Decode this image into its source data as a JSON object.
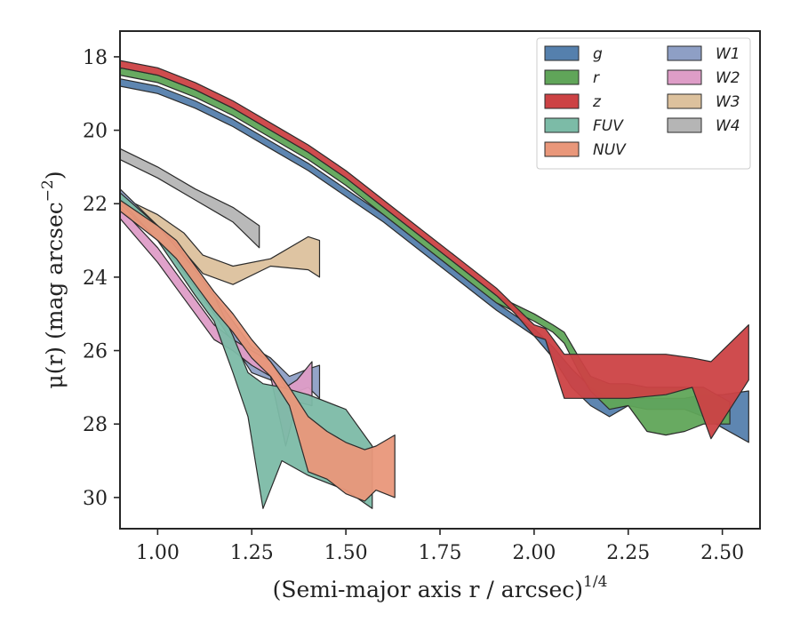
{
  "chart_data": {
    "type": "area",
    "xlabel": "(Semi-major axis r / arcsec)",
    "xlabel_power": "1/4",
    "ylabel": "μ(r) (mag arcsec",
    "ylabel_power": "−2",
    "ylabel_close": ")",
    "xlim": [
      0.9,
      2.6
    ],
    "ylim": [
      30.85,
      17.3
    ],
    "y_inverted": true,
    "xticks": [
      1.0,
      1.25,
      1.5,
      1.75,
      2.0,
      2.25,
      2.5
    ],
    "xtick_labels": [
      "1.00",
      "1.25",
      "1.50",
      "1.75",
      "2.00",
      "2.25",
      "2.50"
    ],
    "yticks": [
      18,
      20,
      22,
      24,
      26,
      28,
      30
    ],
    "ytick_labels": [
      "18",
      "20",
      "22",
      "24",
      "26",
      "28",
      "30"
    ],
    "grid": false,
    "legend_placement": "top-right",
    "legend_columns": 2,
    "series": [
      {
        "name": "W4",
        "color": "#b5b5b5",
        "x": [
          0.9,
          1.0,
          1.1,
          1.2,
          1.27
        ],
        "y_upper": [
          20.5,
          21.0,
          21.6,
          22.1,
          22.6
        ],
        "y_lower": [
          20.8,
          21.3,
          21.9,
          22.5,
          23.2
        ]
      },
      {
        "name": "W3",
        "color": "#dcc19d",
        "x": [
          0.9,
          1.0,
          1.07,
          1.12,
          1.2,
          1.3,
          1.4,
          1.43
        ],
        "y_upper": [
          21.8,
          22.3,
          22.8,
          23.4,
          23.7,
          23.5,
          22.9,
          23.0
        ],
        "y_lower": [
          22.2,
          22.8,
          23.3,
          23.9,
          24.2,
          23.7,
          23.8,
          24.0
        ]
      },
      {
        "name": "W1",
        "color": "#8e9fc5",
        "x": [
          0.9,
          1.0,
          1.05,
          1.1,
          1.15,
          1.2,
          1.25,
          1.3,
          1.35,
          1.4,
          1.43
        ],
        "y_upper": [
          21.6,
          22.6,
          23.1,
          23.8,
          24.5,
          25.2,
          25.9,
          26.2,
          26.7,
          26.5,
          26.4
        ],
        "y_lower": [
          22.0,
          23.0,
          23.6,
          24.3,
          25.0,
          25.8,
          26.6,
          26.8,
          27.2,
          27.0,
          27.3
        ]
      },
      {
        "name": "W2",
        "color": "#de9dc7",
        "x": [
          0.9,
          1.0,
          1.05,
          1.1,
          1.15,
          1.2,
          1.25,
          1.3,
          1.34,
          1.37,
          1.41
        ],
        "y_upper": [
          22.1,
          23.2,
          23.9,
          24.6,
          25.3,
          25.7,
          26.0,
          26.3,
          27.0,
          26.8,
          26.3
        ],
        "y_lower": [
          22.4,
          23.6,
          24.3,
          25.0,
          25.7,
          26.0,
          26.4,
          26.7,
          28.6,
          27.4,
          27.5
        ]
      },
      {
        "name": "FUV",
        "color": "#7cbba7",
        "x": [
          0.9,
          1.0,
          1.1,
          1.15,
          1.2,
          1.24,
          1.28,
          1.33,
          1.4,
          1.5,
          1.57
        ],
        "y_upper": [
          21.7,
          22.6,
          23.8,
          24.5,
          25.6,
          26.6,
          26.9,
          27.0,
          27.2,
          27.6,
          28.6
        ],
        "y_lower": [
          21.9,
          23.0,
          24.5,
          25.2,
          26.6,
          27.8,
          30.3,
          29.0,
          29.4,
          29.8,
          30.3
        ]
      },
      {
        "name": "NUV",
        "color": "#e9977a",
        "x": [
          0.9,
          1.0,
          1.05,
          1.1,
          1.15,
          1.2,
          1.25,
          1.3,
          1.35,
          1.4,
          1.45,
          1.5,
          1.55,
          1.58,
          1.63
        ],
        "y_upper": [
          21.9,
          22.6,
          23.0,
          23.7,
          24.4,
          25.0,
          25.7,
          26.3,
          27.0,
          27.8,
          28.2,
          28.5,
          28.7,
          28.6,
          28.3
        ],
        "y_lower": [
          22.2,
          23.0,
          23.5,
          24.2,
          24.9,
          25.5,
          26.2,
          26.7,
          27.5,
          29.3,
          29.5,
          29.9,
          30.1,
          29.8,
          30.0
        ]
      },
      {
        "name": "g",
        "color": "#5580ad",
        "x": [
          0.9,
          1.0,
          1.1,
          1.2,
          1.3,
          1.4,
          1.5,
          1.6,
          1.7,
          1.8,
          1.9,
          2.0,
          2.05,
          2.1,
          2.15,
          2.2,
          2.25,
          2.3,
          2.35,
          2.4,
          2.45,
          2.5,
          2.57
        ],
        "y_upper": [
          18.6,
          18.8,
          19.2,
          19.7,
          20.3,
          20.9,
          21.6,
          22.3,
          23.1,
          23.9,
          24.7,
          25.4,
          25.9,
          26.5,
          27.0,
          27.3,
          27.3,
          27.3,
          27.3,
          27.3,
          27.2,
          27.2,
          27.1
        ],
        "y_lower": [
          18.8,
          19.0,
          19.4,
          19.9,
          20.5,
          21.1,
          21.8,
          22.5,
          23.3,
          24.1,
          24.9,
          25.6,
          26.2,
          27.0,
          27.5,
          27.8,
          27.5,
          27.6,
          27.6,
          27.6,
          27.8,
          28.1,
          28.5
        ]
      },
      {
        "name": "r",
        "color": "#60a559",
        "x": [
          0.9,
          1.0,
          1.1,
          1.2,
          1.3,
          1.4,
          1.5,
          1.6,
          1.7,
          1.8,
          1.9,
          2.0,
          2.05,
          2.08,
          2.12,
          2.15,
          2.2,
          2.25,
          2.3,
          2.35,
          2.4,
          2.45,
          2.52
        ],
        "y_upper": [
          18.3,
          18.5,
          18.9,
          19.4,
          20.0,
          20.6,
          21.3,
          22.1,
          22.9,
          23.7,
          24.5,
          25.0,
          25.3,
          25.5,
          26.2,
          26.7,
          26.9,
          26.9,
          27.0,
          27.0,
          27.0,
          27.0,
          27.4
        ],
        "y_lower": [
          18.5,
          18.7,
          19.1,
          19.6,
          20.2,
          20.8,
          21.5,
          22.3,
          23.1,
          23.9,
          24.7,
          25.2,
          25.5,
          25.8,
          26.6,
          27.1,
          27.6,
          27.5,
          28.2,
          28.3,
          28.2,
          28.0,
          28.0
        ]
      },
      {
        "name": "z",
        "color": "#cc4244",
        "x": [
          0.9,
          1.0,
          1.1,
          1.2,
          1.3,
          1.4,
          1.5,
          1.6,
          1.7,
          1.8,
          1.9,
          1.95,
          2.0,
          2.03,
          2.08,
          2.15,
          2.25,
          2.35,
          2.42,
          2.47,
          2.52,
          2.57
        ],
        "y_upper": [
          18.1,
          18.3,
          18.7,
          19.2,
          19.8,
          20.4,
          21.1,
          21.9,
          22.7,
          23.5,
          24.3,
          24.8,
          25.3,
          25.4,
          26.1,
          26.1,
          26.1,
          26.1,
          26.2,
          26.3,
          25.8,
          25.3
        ],
        "y_lower": [
          18.3,
          18.5,
          18.9,
          19.4,
          20.0,
          20.6,
          21.3,
          22.1,
          22.9,
          23.7,
          24.5,
          25.0,
          25.6,
          25.7,
          27.3,
          27.3,
          27.3,
          27.2,
          27.0,
          28.4,
          27.6,
          26.8
        ]
      }
    ]
  }
}
